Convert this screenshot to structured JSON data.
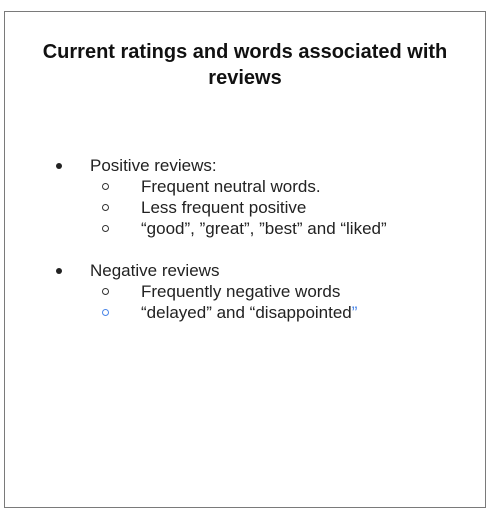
{
  "title": "Current ratings and words associated with reviews",
  "bullets": [
    {
      "label": "Positive reviews:",
      "subitems": [
        {
          "text": "Frequent neutral words.",
          "suffix": ""
        },
        {
          "text": "Less frequent positive",
          "suffix": ""
        },
        {
          "text": "“good”, ”great”, ”best” and “liked”",
          "suffix": ""
        }
      ]
    },
    {
      "label": "Negative reviews",
      "subitems": [
        {
          "text": "Frequently negative words",
          "suffix": ""
        },
        {
          "text": "“delayed” and “disappointed",
          "suffix": "”"
        }
      ]
    }
  ],
  "colors": {
    "text": "#222222",
    "accent": "#4a86e8",
    "border": "#7a7a7a"
  }
}
